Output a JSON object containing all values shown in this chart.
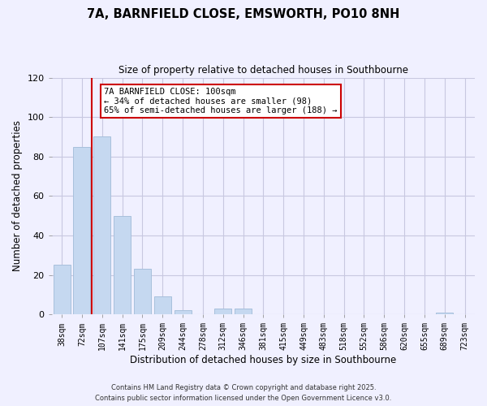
{
  "title": "7A, BARNFIELD CLOSE, EMSWORTH, PO10 8NH",
  "subtitle": "Size of property relative to detached houses in Southbourne",
  "xlabel": "Distribution of detached houses by size in Southbourne",
  "ylabel": "Number of detached properties",
  "bar_labels": [
    "38sqm",
    "72sqm",
    "107sqm",
    "141sqm",
    "175sqm",
    "209sqm",
    "244sqm",
    "278sqm",
    "312sqm",
    "346sqm",
    "381sqm",
    "415sqm",
    "449sqm",
    "483sqm",
    "518sqm",
    "552sqm",
    "586sqm",
    "620sqm",
    "655sqm",
    "689sqm",
    "723sqm"
  ],
  "bar_values": [
    25,
    85,
    90,
    50,
    23,
    9,
    2,
    0,
    3,
    3,
    0,
    0,
    0,
    0,
    0,
    0,
    0,
    0,
    0,
    1,
    0
  ],
  "bar_color": "#c5d8f0",
  "bar_edge_color": "#a8c0dc",
  "ylim": [
    0,
    120
  ],
  "yticks": [
    0,
    20,
    40,
    60,
    80,
    100,
    120
  ],
  "vline_color": "#cc0000",
  "annotation_title": "7A BARNFIELD CLOSE: 100sqm",
  "annotation_line1": "← 34% of detached houses are smaller (98)",
  "annotation_line2": "65% of semi-detached houses are larger (188) →",
  "annotation_box_color": "#ffffff",
  "annotation_box_edge": "#cc0000",
  "background_color": "#f0f0ff",
  "grid_color": "#c8c8e0",
  "footer1": "Contains HM Land Registry data © Crown copyright and database right 2025.",
  "footer2": "Contains public sector information licensed under the Open Government Licence v3.0."
}
